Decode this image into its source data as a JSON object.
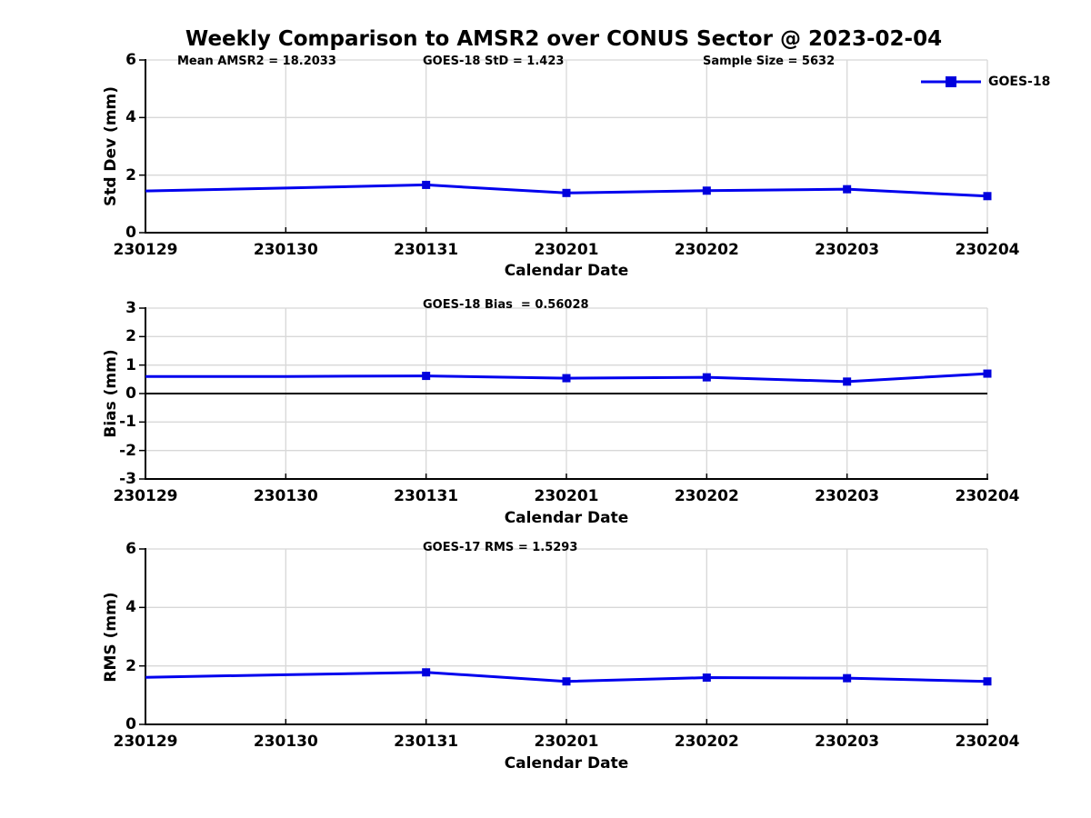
{
  "title": "Weekly Comparison to AMSR2 over CONUS Sector @ 2023-02-04",
  "legend": {
    "label": "GOES-18"
  },
  "colors": {
    "line": "#0000EE",
    "marker": "#0000DD",
    "grid": "#D8D8D8",
    "axis": "#000000",
    "zero_line": "#000000",
    "text": "#000000"
  },
  "chart_data": [
    {
      "type": "line",
      "ylabel": "Std Dev (mm)",
      "xlabel": "Calendar Date",
      "ylim": [
        0,
        6
      ],
      "yticks": [
        0,
        2,
        4,
        6
      ],
      "grid": true,
      "legend_position": "top-right-outside",
      "annotations": [
        "Mean AMSR2 = 18.2033",
        "GOES-18 StD = 1.423",
        "Sample Size = 5632"
      ],
      "categories": [
        "230129",
        "230130",
        "230131",
        "230201",
        "230202",
        "230203",
        "230204"
      ],
      "series": [
        {
          "name": "GOES-18",
          "values": [
            1.45,
            1.55,
            1.66,
            1.38,
            1.46,
            1.51,
            1.27
          ],
          "marker": "square",
          "marker_indices": [
            2,
            3,
            4,
            5,
            6
          ]
        }
      ]
    },
    {
      "type": "line",
      "ylabel": "Bias (mm)",
      "xlabel": "Calendar Date",
      "ylim": [
        -3,
        3
      ],
      "yticks": [
        -3,
        -2,
        -1,
        0,
        1,
        2,
        3
      ],
      "grid": true,
      "zero_line": true,
      "annotations": [
        "GOES-18 Bias  = 0.56028"
      ],
      "categories": [
        "230129",
        "230130",
        "230131",
        "230201",
        "230202",
        "230203",
        "230204"
      ],
      "series": [
        {
          "name": "GOES-18",
          "values": [
            0.6,
            0.6,
            0.62,
            0.54,
            0.57,
            0.42,
            0.7
          ],
          "marker": "square",
          "marker_indices": [
            2,
            3,
            4,
            5,
            6
          ]
        }
      ]
    },
    {
      "type": "line",
      "ylabel": "RMS (mm)",
      "xlabel": "Calendar Date",
      "ylim": [
        0,
        6
      ],
      "yticks": [
        0,
        2,
        4,
        6
      ],
      "grid": true,
      "annotations": [
        "GOES-17 RMS = 1.5293"
      ],
      "categories": [
        "230129",
        "230130",
        "230131",
        "230201",
        "230202",
        "230203",
        "230204"
      ],
      "series": [
        {
          "name": "GOES-18",
          "values": [
            1.61,
            1.7,
            1.78,
            1.47,
            1.6,
            1.58,
            1.47
          ],
          "marker": "square",
          "marker_indices": [
            2,
            3,
            4,
            5,
            6
          ]
        }
      ]
    }
  ]
}
